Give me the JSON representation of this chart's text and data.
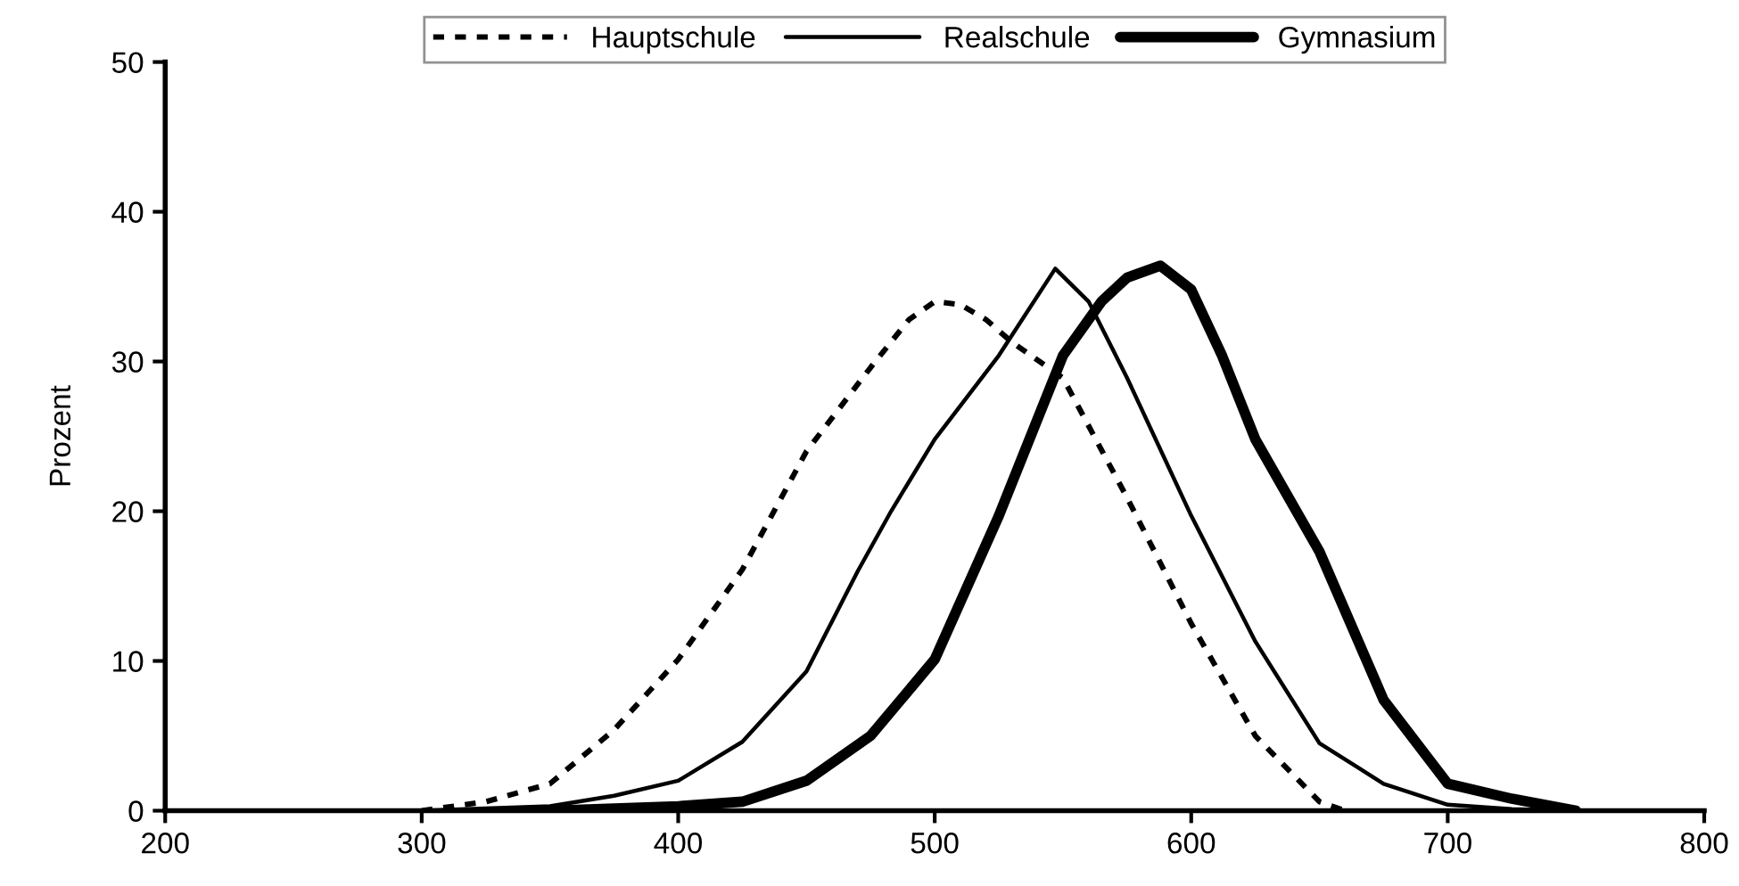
{
  "chart_data": {
    "type": "line",
    "ylabel": "Prozent",
    "xlim": [
      200,
      800
    ],
    "xticks": [
      200,
      300,
      400,
      500,
      600,
      700,
      800
    ],
    "ylim": [
      0,
      50
    ],
    "yticks": [
      0,
      10,
      20,
      30,
      40,
      50
    ],
    "grid": false,
    "legend": "top",
    "marker": "none",
    "series": [
      {
        "name": "Hauptschule",
        "color": "#000000",
        "line_style": "dotted",
        "x": [
          300,
          325,
          350,
          375,
          400,
          425,
          450,
          475,
          490,
          500,
          510,
          520,
          530,
          550,
          575,
          600,
          625,
          650,
          660
        ],
        "values": [
          0,
          0.6,
          1.8,
          5.4,
          10.1,
          16.1,
          24,
          29.6,
          32.8,
          34,
          33.8,
          32.8,
          31.3,
          28.9,
          20.9,
          12.5,
          5,
          0.6,
          0
        ]
      },
      {
        "name": "Realschule",
        "color": "#000000",
        "line_style": "solid",
        "x": [
          250,
          300,
          350,
          375,
          400,
          425,
          450,
          470,
          483,
          500,
          525,
          547,
          560,
          575,
          600,
          625,
          650,
          675,
          700,
          725,
          750
        ],
        "values": [
          0,
          0,
          0.3,
          1,
          2,
          4.6,
          9.3,
          16,
          20,
          24.8,
          30.4,
          36.2,
          34,
          28.9,
          19.7,
          11.3,
          4.5,
          1.8,
          0.4,
          0.1,
          0
        ]
      },
      {
        "name": "Gymnasium",
        "color": "#000000",
        "line_style": "solid",
        "x": [
          350,
          400,
          425,
          450,
          475,
          500,
          525,
          550,
          565,
          575,
          588,
          600,
          612,
          625,
          650,
          675,
          700,
          725,
          750
        ],
        "values": [
          0,
          0.3,
          0.6,
          2,
          5,
          10.1,
          19.7,
          30.4,
          34,
          35.6,
          36.4,
          34.8,
          30.4,
          24.8,
          17.3,
          7.4,
          1.8,
          0.8,
          0
        ]
      }
    ]
  }
}
